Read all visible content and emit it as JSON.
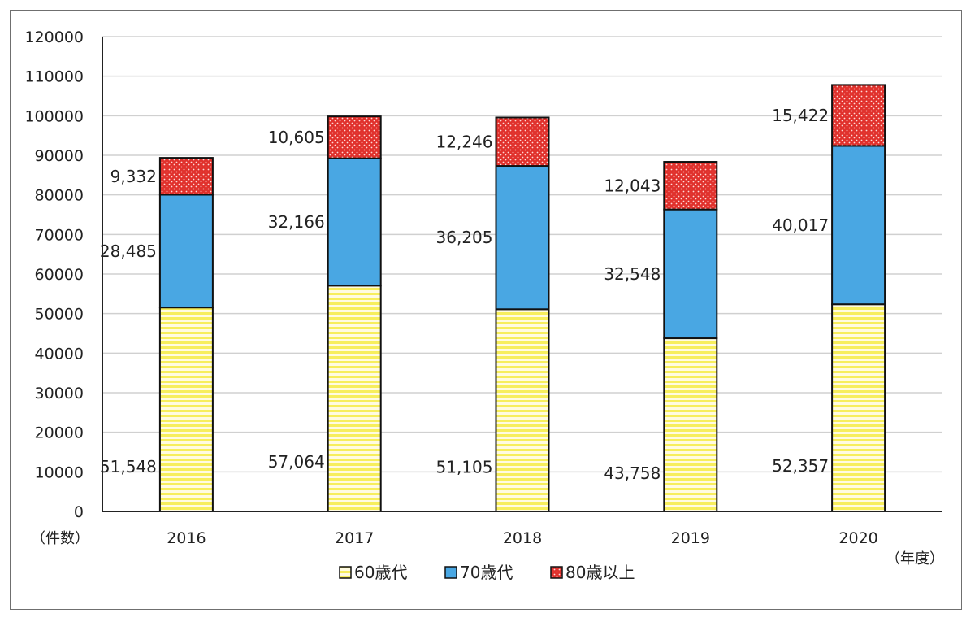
{
  "chart_data": {
    "type": "bar",
    "stacked": true,
    "categories": [
      "2016",
      "2017",
      "2018",
      "2019",
      "2020"
    ],
    "series": [
      {
        "name": "60歳代",
        "values": [
          51548,
          57064,
          51105,
          43758,
          52357
        ],
        "labels": [
          "51,548",
          "57,064",
          "51,105",
          "43,758",
          "52,357"
        ],
        "color": "#fff27a",
        "pattern": "horizontal-stripes"
      },
      {
        "name": "70歳代",
        "values": [
          28485,
          32166,
          36205,
          32548,
          40017
        ],
        "labels": [
          "28,485",
          "32,166",
          "36,205",
          "32,548",
          "40,017"
        ],
        "color": "#49a7e3",
        "pattern": "solid"
      },
      {
        "name": "80歳以上",
        "values": [
          9332,
          10605,
          12246,
          12043,
          15422
        ],
        "labels": [
          "9,332",
          "10,605",
          "12,246",
          "12,043",
          "15,422"
        ],
        "color": "#e0312c",
        "pattern": "dotted"
      }
    ],
    "yticks": [
      "0",
      "10000",
      "20000",
      "30000",
      "40000",
      "50000",
      "60000",
      "70000",
      "80000",
      "90000",
      "100000",
      "110000",
      "120000"
    ],
    "ylim": [
      0,
      120000
    ],
    "ylabel": "（件数）",
    "xlabel": "（年度）",
    "grid": true,
    "legend": "bottom"
  }
}
